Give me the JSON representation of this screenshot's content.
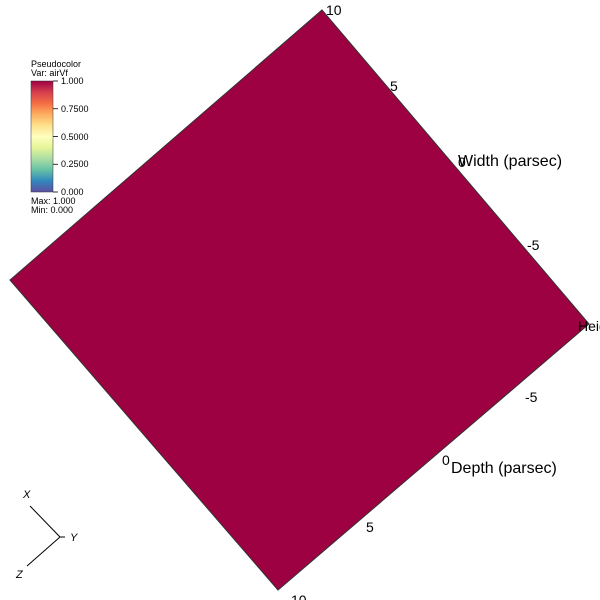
{
  "legend": {
    "title": "Pseudocolor",
    "var_label": "Var: airVf",
    "ticks": [
      "1.000",
      "0.7500",
      "0.5000",
      "0.2500",
      "0.000"
    ],
    "max_label": "Max:  1.000",
    "min_label": "Min:  0.000",
    "colormap": [
      "#9e0142",
      "#d53e4f",
      "#f46d43",
      "#fdae61",
      "#fee08b",
      "#ffffbf",
      "#e6f598",
      "#abdda4",
      "#66c2a5",
      "#3288bd",
      "#5e4fa2"
    ]
  },
  "surface": {
    "color": "#9e0142",
    "value": 1.0
  },
  "axes": {
    "width": {
      "title": "Width (parsec)",
      "ticks": [
        "10",
        "5",
        "0",
        "-5"
      ]
    },
    "depth": {
      "title": "Depth (parsec)",
      "ticks": [
        "-5",
        "0",
        "5",
        "10"
      ]
    },
    "height": {
      "title": "Height (parsec)"
    }
  },
  "triad": {
    "x": "X",
    "y": "Y",
    "z": "Z"
  }
}
